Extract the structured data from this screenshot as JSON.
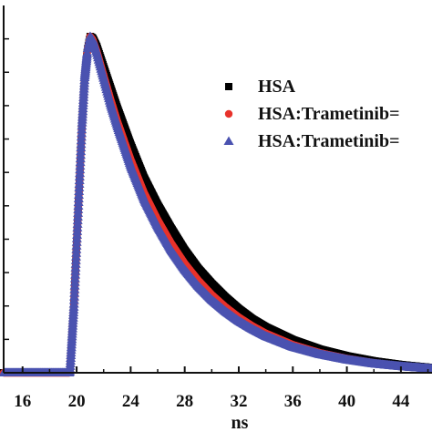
{
  "chart_data": {
    "type": "scatter",
    "xlabel": "ns",
    "ylabel": "",
    "xlim": [
      14.6,
      46.3
    ],
    "ylim": [
      0,
      1.0
    ],
    "x_ticks": [
      "16",
      "20",
      "24",
      "28",
      "32",
      "36",
      "40",
      "44"
    ],
    "legend_position": "right",
    "grid": false,
    "series": [
      {
        "name": "HSA",
        "marker": "square",
        "color": "#000000",
        "x": [
          14.6,
          19.5,
          19.8,
          20.0,
          20.2,
          20.4,
          20.6,
          20.8,
          21.0,
          21.2,
          21.5,
          22.0,
          22.5,
          23.0,
          24.0,
          25.0,
          26.0,
          27.0,
          28.0,
          29.0,
          30.0,
          31.0,
          32.0,
          33.0,
          34.0,
          36.0,
          38.0,
          40.0,
          42.0,
          44.0,
          46.3
        ],
        "y": [
          0.0,
          0.0,
          0.2,
          0.38,
          0.56,
          0.74,
          0.88,
          0.96,
          1.0,
          0.995,
          0.97,
          0.91,
          0.85,
          0.79,
          0.68,
          0.58,
          0.5,
          0.43,
          0.365,
          0.31,
          0.265,
          0.225,
          0.19,
          0.16,
          0.136,
          0.098,
          0.07,
          0.05,
          0.035,
          0.024,
          0.015
        ]
      },
      {
        "name": "HSA:Trametinib=",
        "marker": "circle",
        "color": "#e8322b",
        "x": [
          14.6,
          19.5,
          19.8,
          20.0,
          20.2,
          20.4,
          20.6,
          20.8,
          21.0,
          21.2,
          21.5,
          22.0,
          22.5,
          23.0,
          24.0,
          25.0,
          26.0,
          27.0,
          28.0,
          29.0,
          30.0,
          31.0,
          32.0,
          33.0,
          34.0,
          36.0,
          38.0,
          40.0,
          42.0,
          44.0,
          46.3
        ],
        "y": [
          0.0,
          0.0,
          0.2,
          0.38,
          0.56,
          0.74,
          0.88,
          0.96,
          1.0,
          0.99,
          0.955,
          0.885,
          0.815,
          0.75,
          0.635,
          0.535,
          0.455,
          0.385,
          0.325,
          0.275,
          0.232,
          0.196,
          0.165,
          0.139,
          0.117,
          0.083,
          0.059,
          0.042,
          0.029,
          0.02,
          0.012
        ]
      },
      {
        "name": "HSA:Trametinib=",
        "marker": "triangle",
        "color": "#4a52b0",
        "x": [
          14.6,
          19.5,
          19.8,
          20.0,
          20.2,
          20.4,
          20.6,
          20.8,
          21.0,
          21.2,
          21.5,
          22.0,
          22.5,
          23.0,
          24.0,
          25.0,
          26.0,
          27.0,
          28.0,
          29.0,
          30.0,
          31.0,
          32.0,
          33.0,
          34.0,
          36.0,
          38.0,
          40.0,
          42.0,
          44.0,
          46.3
        ],
        "y": [
          0.0,
          0.0,
          0.2,
          0.38,
          0.56,
          0.74,
          0.88,
          0.96,
          1.0,
          0.99,
          0.95,
          0.875,
          0.8,
          0.735,
          0.615,
          0.515,
          0.435,
          0.365,
          0.307,
          0.258,
          0.217,
          0.183,
          0.154,
          0.13,
          0.109,
          0.077,
          0.055,
          0.039,
          0.027,
          0.019,
          0.012
        ]
      }
    ]
  }
}
